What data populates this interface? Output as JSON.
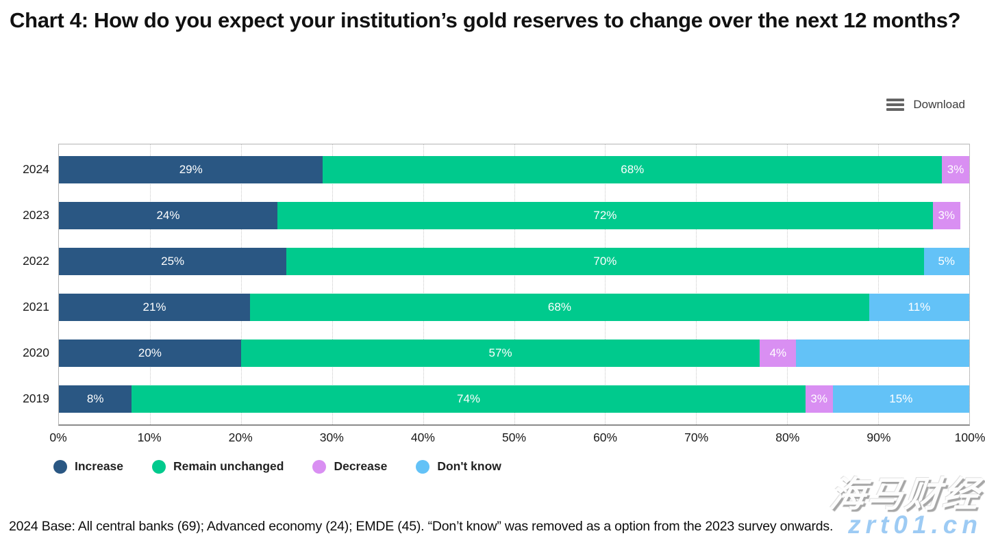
{
  "header": {
    "title": "Chart 4: How do you expect your institution’s gold reserves to change over the next 12 months?"
  },
  "toolbar": {
    "download_label": "Download"
  },
  "chart_data": {
    "type": "bar",
    "variant": "horizontal-stacked",
    "title": "Chart 4: How do you expect your institution’s gold reserves to change over the next 12 months?",
    "xlabel": "",
    "ylabel": "",
    "xlim": [
      0,
      100
    ],
    "grid": "vertical-dotted",
    "legend_position": "bottom",
    "categories": [
      "2024",
      "2023",
      "2022",
      "2021",
      "2020",
      "2019"
    ],
    "series_names": [
      "Increase",
      "Remain unchanged",
      "Decrease",
      "Don't know"
    ],
    "colors": {
      "Increase": "#2a5783",
      "Remain unchanged": "#00ca8d",
      "Decrease": "#d98ff2",
      "Don't know": "#63c2f7"
    },
    "rows": [
      {
        "category": "2024",
        "segments": [
          {
            "series": "Increase",
            "value": 29,
            "label": "29%"
          },
          {
            "series": "Remain unchanged",
            "value": 68,
            "label": "68%"
          },
          {
            "series": "Decrease",
            "value": 3,
            "label": "3%"
          }
        ]
      },
      {
        "category": "2023",
        "segments": [
          {
            "series": "Increase",
            "value": 24,
            "label": "24%"
          },
          {
            "series": "Remain unchanged",
            "value": 72,
            "label": "72%"
          },
          {
            "series": "Decrease",
            "value": 3,
            "label": "3%"
          }
        ]
      },
      {
        "category": "2022",
        "segments": [
          {
            "series": "Increase",
            "value": 25,
            "label": "25%"
          },
          {
            "series": "Remain unchanged",
            "value": 70,
            "label": "70%"
          },
          {
            "series": "Don't know",
            "value": 5,
            "label": "5%"
          }
        ]
      },
      {
        "category": "2021",
        "segments": [
          {
            "series": "Increase",
            "value": 21,
            "label": "21%"
          },
          {
            "series": "Remain unchanged",
            "value": 68,
            "label": "68%"
          },
          {
            "series": "Don't know",
            "value": 11,
            "label": "11%"
          }
        ]
      },
      {
        "category": "2020",
        "segments": [
          {
            "series": "Increase",
            "value": 20,
            "label": "20%"
          },
          {
            "series": "Remain unchanged",
            "value": 57,
            "label": "57%"
          },
          {
            "series": "Decrease",
            "value": 4,
            "label": "4%"
          },
          {
            "series": "Don't know",
            "value": 19,
            "label": ""
          }
        ]
      },
      {
        "category": "2019",
        "segments": [
          {
            "series": "Increase",
            "value": 8,
            "label": "8%"
          },
          {
            "series": "Remain unchanged",
            "value": 74,
            "label": "74%"
          },
          {
            "series": "Decrease",
            "value": 3,
            "label": "3%"
          },
          {
            "series": "Don't know",
            "value": 15,
            "label": "15%"
          }
        ]
      }
    ],
    "x_ticks": [
      "0%",
      "10%",
      "20%",
      "30%",
      "40%",
      "50%",
      "60%",
      "70%",
      "80%",
      "90%",
      "100%"
    ],
    "legend": [
      {
        "label": "Increase",
        "color": "#2a5783"
      },
      {
        "label": "Remain unchanged",
        "color": "#00ca8d"
      },
      {
        "label": "Decrease",
        "color": "#d98ff2"
      },
      {
        "label": "Don't know",
        "color": "#63c2f7"
      }
    ]
  },
  "footer": {
    "note": "2024 Base: All central banks (69); Advanced economy (24); EMDE (45). “Don’t know” was removed as a option from the 2023 survey onwards."
  },
  "watermark": {
    "line1": "海马财经",
    "line2": "zrt01.cn"
  }
}
